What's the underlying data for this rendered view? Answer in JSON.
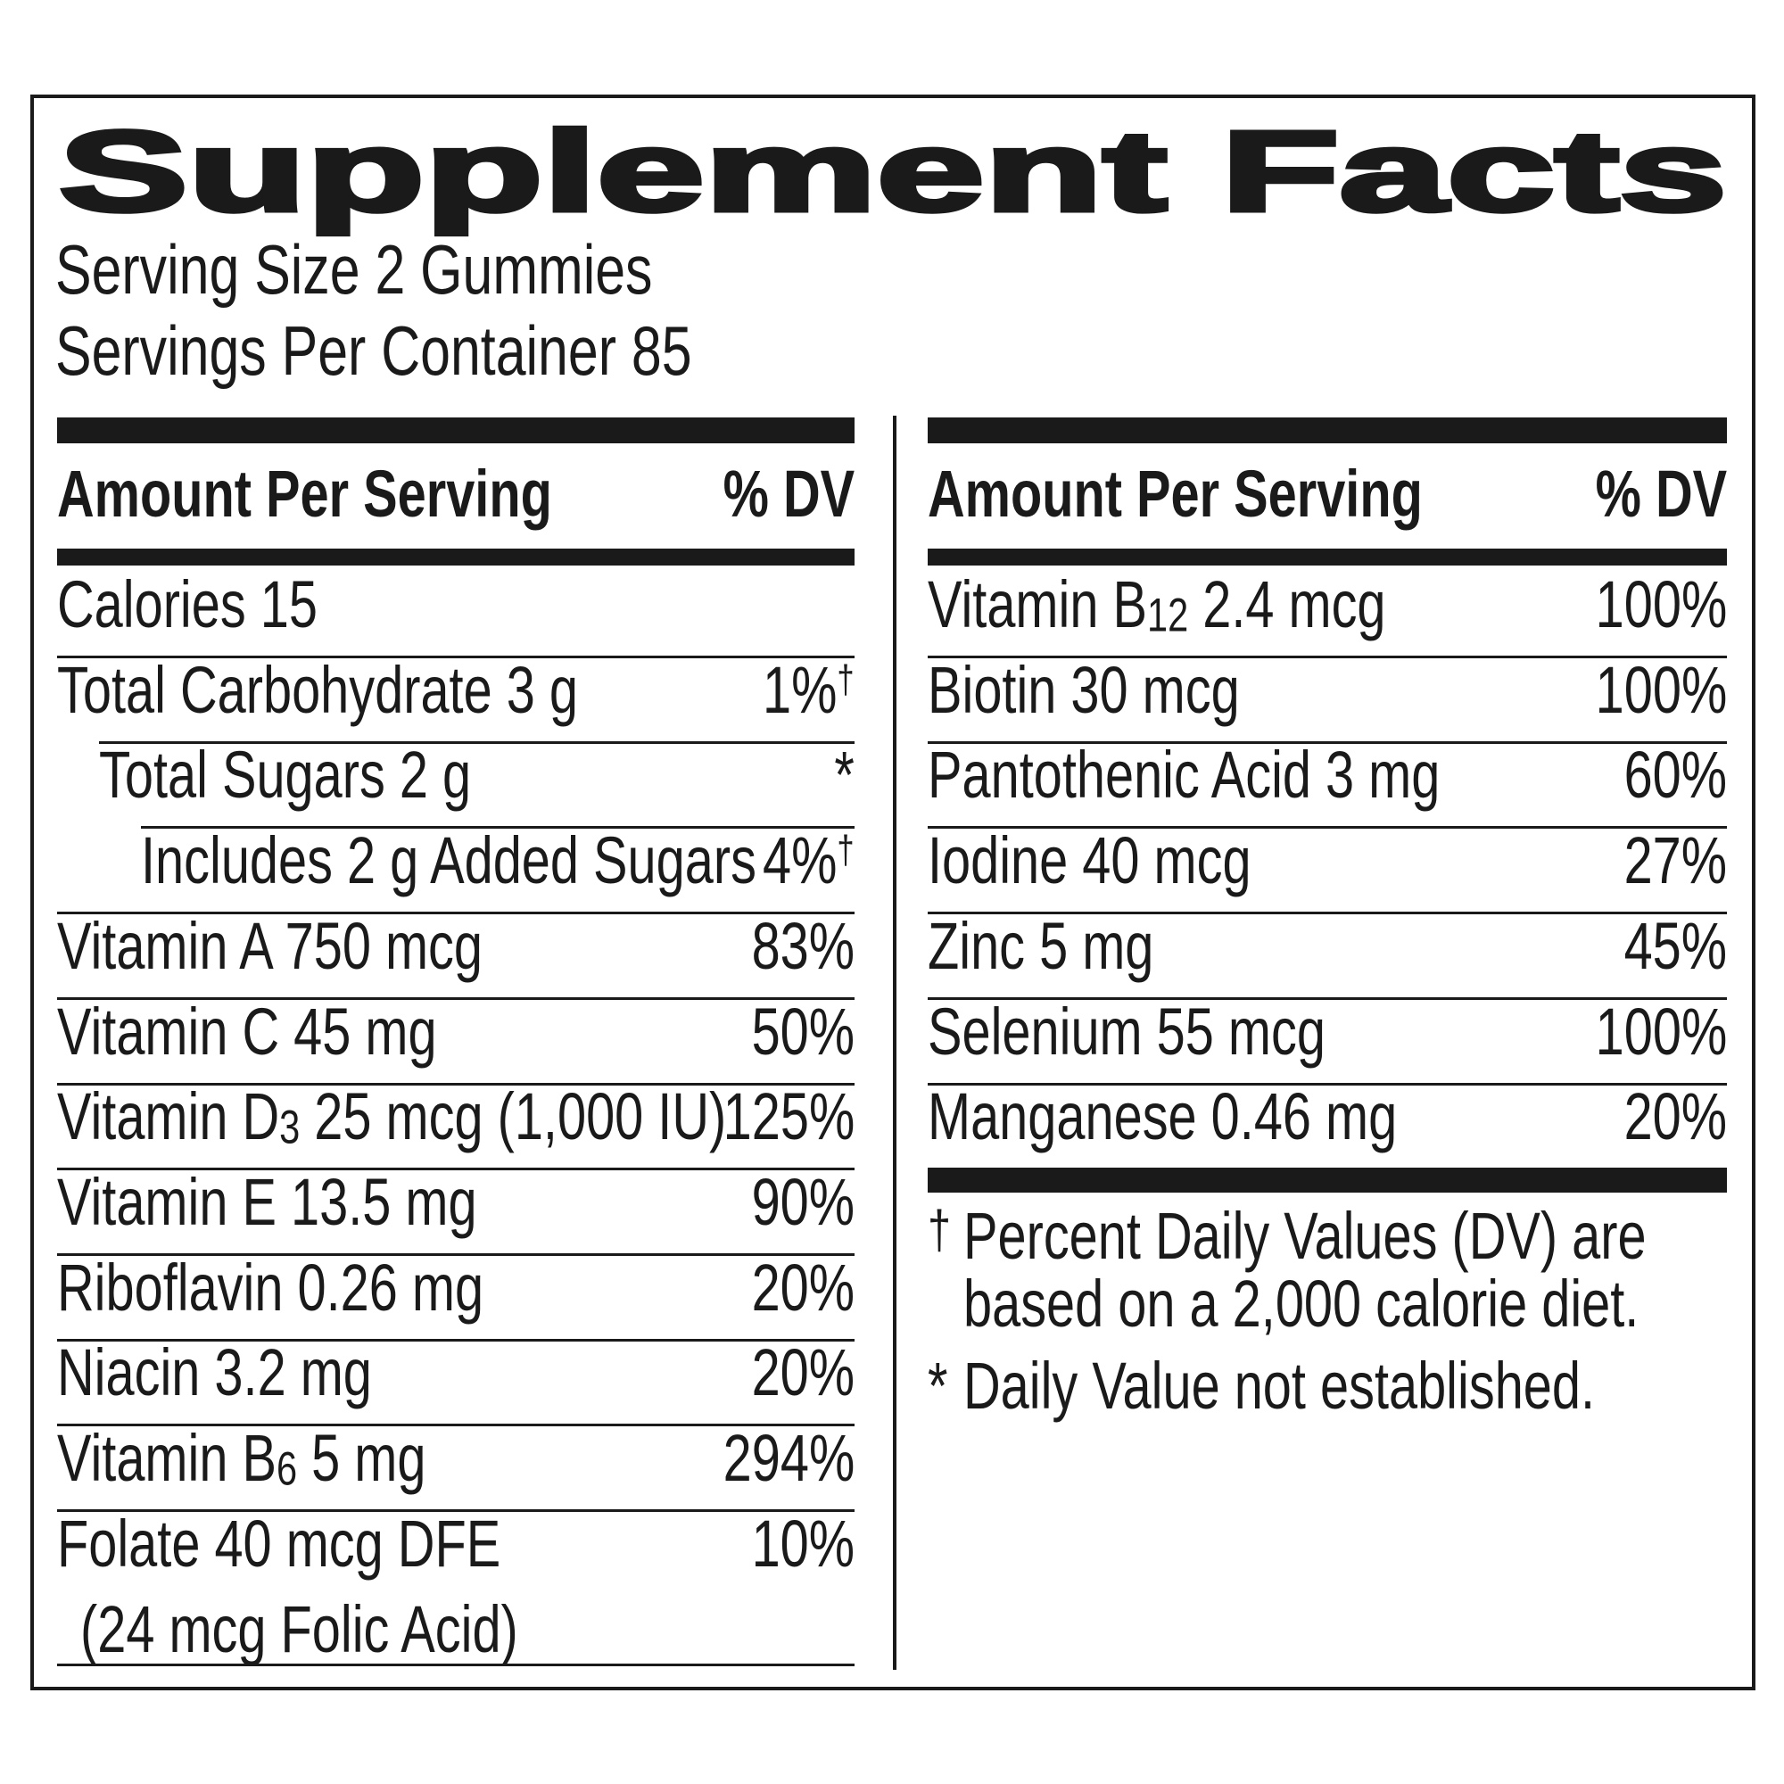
{
  "title": "Supplement Facts",
  "serving_size": "Serving Size 2 Gummies",
  "servings_per_container": "Servings Per Container 85",
  "header": {
    "amount": "Amount Per Serving",
    "dv": "% DV"
  },
  "left_rows": [
    {
      "pre": "Calories 15",
      "sub": "",
      "post": "",
      "dv": "",
      "mark": "",
      "indent": 0
    },
    {
      "pre": "Total Carbohydrate 3 g",
      "sub": "",
      "post": "",
      "dv": "1%",
      "mark": "†",
      "indent": 0
    },
    {
      "pre": "Total Sugars 2 g",
      "sub": "",
      "post": "",
      "dv": "*",
      "mark": "",
      "indent": 1
    },
    {
      "pre": "Includes 2 g Added Sugars",
      "sub": "",
      "post": "",
      "dv": "4%",
      "mark": "†",
      "indent": 2
    },
    {
      "pre": "Vitamin A 750 mcg",
      "sub": "",
      "post": "",
      "dv": "83%",
      "mark": "",
      "indent": 0
    },
    {
      "pre": "Vitamin C 45 mg",
      "sub": "",
      "post": "",
      "dv": "50%",
      "mark": "",
      "indent": 0
    },
    {
      "pre": "Vitamin D",
      "sub": "3",
      "post": " 25 mcg (1,000 IU)",
      "dv": "125%",
      "mark": "",
      "indent": 0
    },
    {
      "pre": "Vitamin E 13.5 mg",
      "sub": "",
      "post": "",
      "dv": "90%",
      "mark": "",
      "indent": 0
    },
    {
      "pre": "Riboflavin 0.26 mg",
      "sub": "",
      "post": "",
      "dv": "20%",
      "mark": "",
      "indent": 0
    },
    {
      "pre": "Niacin 3.2 mg",
      "sub": "",
      "post": "",
      "dv": "20%",
      "mark": "",
      "indent": 0
    },
    {
      "pre": "Vitamin B",
      "sub": "6",
      "post": " 5 mg",
      "dv": "294%",
      "mark": "",
      "indent": 0
    },
    {
      "pre": "Folate 40 mcg DFE",
      "sub": "",
      "post": "",
      "dv": "10%",
      "mark": "",
      "indent": 0,
      "line2": "(24 mcg Folic Acid)"
    }
  ],
  "right_rows": [
    {
      "pre": "Vitamin B",
      "sub": "12",
      "post": " 2.4 mcg",
      "dv": "100%",
      "mark": ""
    },
    {
      "pre": "Biotin 30 mcg",
      "sub": "",
      "post": "",
      "dv": "100%",
      "mark": ""
    },
    {
      "pre": "Pantothenic Acid 3 mg",
      "sub": "",
      "post": "",
      "dv": "60%",
      "mark": ""
    },
    {
      "pre": "Iodine 40 mcg",
      "sub": "",
      "post": "",
      "dv": "27%",
      "mark": ""
    },
    {
      "pre": "Zinc 5 mg",
      "sub": "",
      "post": "",
      "dv": "45%",
      "mark": ""
    },
    {
      "pre": "Selenium 55 mcg",
      "sub": "",
      "post": "",
      "dv": "100%",
      "mark": ""
    },
    {
      "pre": "Manganese 0.46 mg",
      "sub": "",
      "post": "",
      "dv": "20%",
      "mark": ""
    }
  ],
  "footnotes": {
    "dagger": "†",
    "dv_line1": "Percent Daily Values (DV) are",
    "dv_line2": "based on a 2,000 calorie diet.",
    "star": "*",
    "star_text": "Daily Value not established."
  }
}
